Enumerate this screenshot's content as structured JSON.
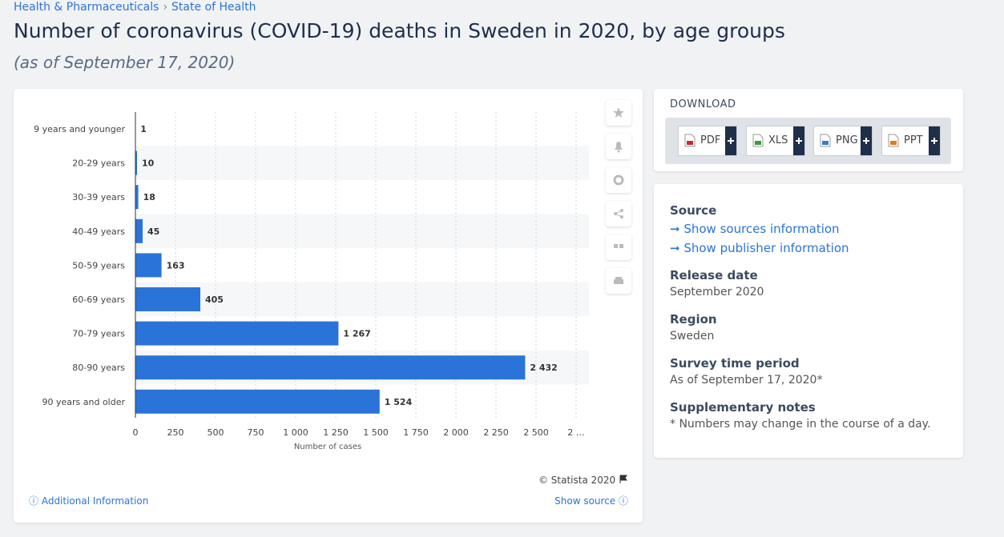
{
  "breadcrumb": [
    "Health & Pharmaceuticals",
    "State of Health"
  ],
  "header": {
    "title": "Number of coronavirus (COVID-19) deaths in Sweden in 2020, by age groups",
    "subtitle": "(as of September 17, 2020)"
  },
  "chart_data": {
    "type": "bar",
    "orientation": "horizontal",
    "categories": [
      "9 years and younger",
      "20-29 years",
      "30-39 years",
      "40-49 years",
      "50-59 years",
      "60-69 years",
      "70-79 years",
      "80-90 years",
      "90 years and older"
    ],
    "values": [
      1,
      10,
      18,
      45,
      163,
      405,
      1267,
      2432,
      1524
    ],
    "value_labels": [
      "1",
      "10",
      "18",
      "45",
      "163",
      "405",
      "1 267",
      "2 432",
      "1 524"
    ],
    "color": "#2a74d9",
    "x_label": "Number of cases",
    "xlim": [
      0,
      2750
    ],
    "xticks": [
      0,
      250,
      500,
      750,
      {
        "value": 1000,
        "label": "1 000"
      },
      {
        "value": 1250,
        "label": "1 250"
      },
      {
        "value": 1500,
        "label": "1 500"
      },
      {
        "value": 1750,
        "label": "1 750"
      },
      {
        "value": 2000,
        "label": "2 000"
      },
      {
        "value": 2250,
        "label": "2 250"
      },
      {
        "value": 2500,
        "label": "2 500"
      },
      {
        "value": 2750,
        "label": "2 …"
      }
    ],
    "grid": true
  },
  "chart_footer": {
    "copyright": "© Statista 2020",
    "additional": "Additional Information",
    "show_source": "Show source"
  },
  "download": {
    "title": "DOWNLOAD",
    "buttons": [
      "PDF",
      "XLS",
      "PNG",
      "PPT"
    ]
  },
  "info": {
    "source_heading": "Source",
    "source_links": [
      "Show sources information",
      "Show publisher information"
    ],
    "fields": [
      {
        "heading": "Release date",
        "text": "September 2020"
      },
      {
        "heading": "Region",
        "text": "Sweden"
      },
      {
        "heading": "Survey time period",
        "text": "As of September 17, 2020*"
      },
      {
        "heading": "Supplementary notes",
        "text": "* Numbers may change in the course of a day."
      }
    ]
  }
}
